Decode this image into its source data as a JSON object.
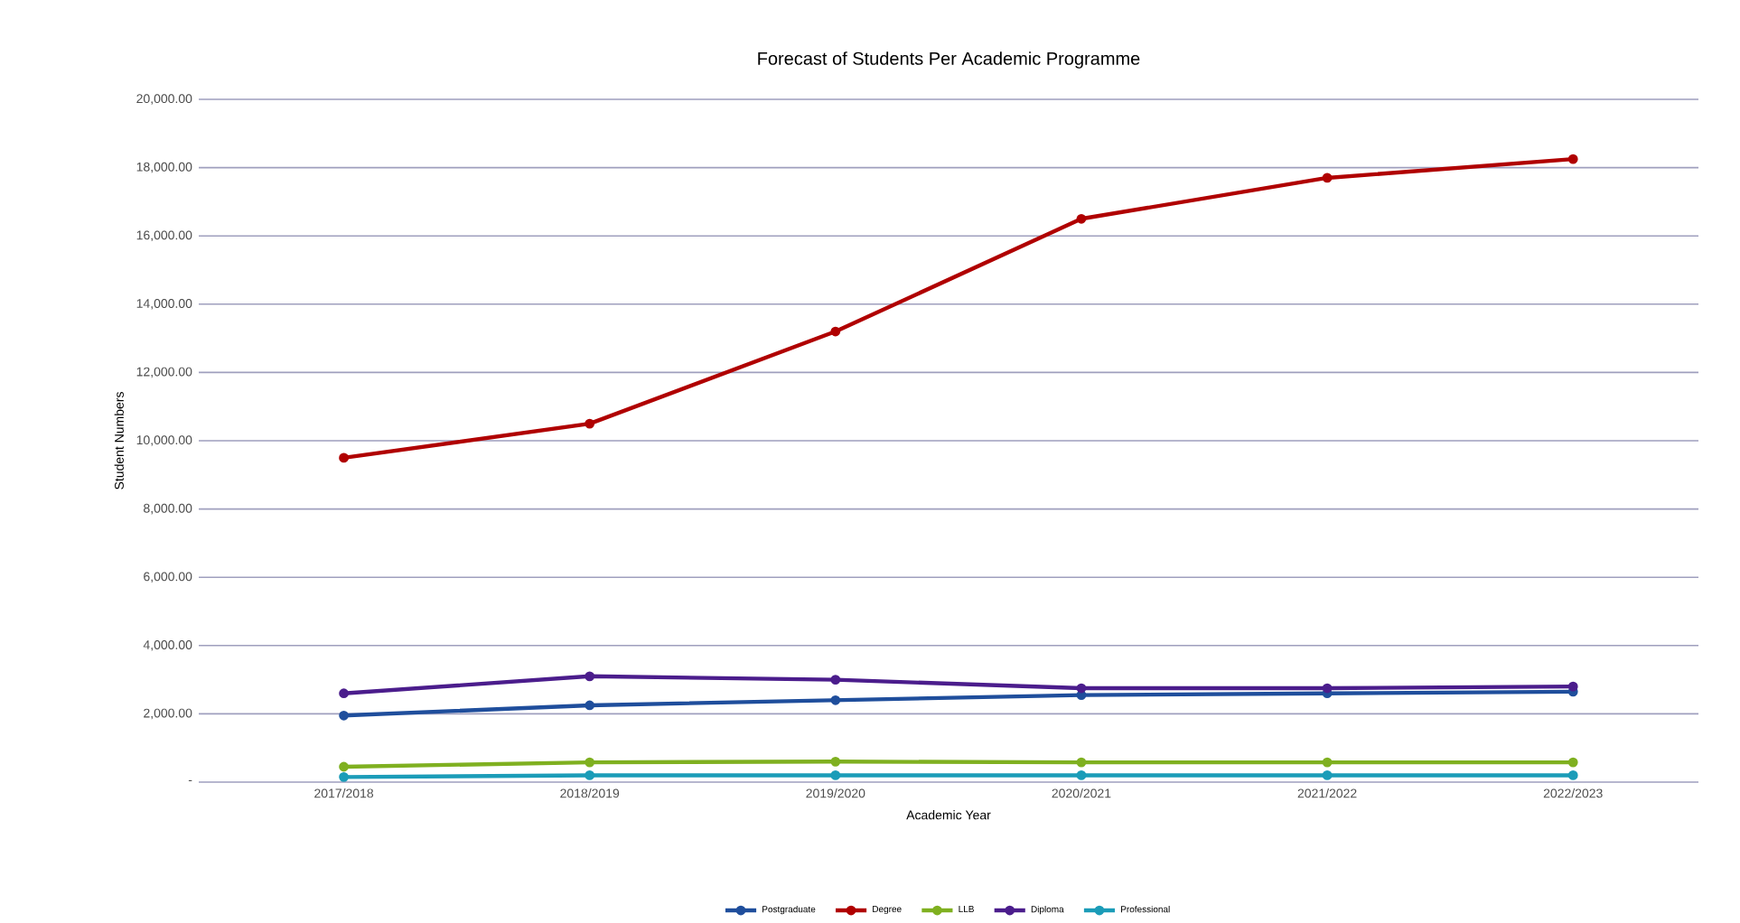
{
  "chart_data": {
    "type": "line",
    "title": "Forecast of Students Per Academic Programme",
    "xlabel": "Academic Year",
    "ylabel": "Student Numbers",
    "categories": [
      "2017/2018",
      "2018/2019",
      "2019/2020",
      "2020/2021",
      "2021/2022",
      "2022/2023"
    ],
    "series": [
      {
        "name": "Postgraduate",
        "color": "#1f4e9c",
        "values": [
          1950,
          2250,
          2400,
          2550,
          2600,
          2650
        ]
      },
      {
        "name": "Degree",
        "color": "#b00000",
        "values": [
          9500,
          10500,
          13200,
          16500,
          17700,
          18250
        ]
      },
      {
        "name": "LLB",
        "color": "#7fb020",
        "values": [
          450,
          580,
          600,
          580,
          580,
          580
        ]
      },
      {
        "name": "Diploma",
        "color": "#4b1d8c",
        "values": [
          2600,
          3100,
          3000,
          2750,
          2750,
          2800
        ]
      },
      {
        "name": "Professional",
        "color": "#1b9cb8",
        "values": [
          150,
          200,
          200,
          200,
          200,
          200
        ]
      }
    ],
    "ylim": [
      0,
      20000
    ],
    "yticks": [
      {
        "value": 0,
        "label": "-"
      },
      {
        "value": 2000,
        "label": "2,000.00"
      },
      {
        "value": 4000,
        "label": "4,000.00"
      },
      {
        "value": 6000,
        "label": "6,000.00"
      },
      {
        "value": 8000,
        "label": "8,000.00"
      },
      {
        "value": 10000,
        "label": "10,000.00"
      },
      {
        "value": 12000,
        "label": "12,000.00"
      },
      {
        "value": 14000,
        "label": "14,000.00"
      },
      {
        "value": 16000,
        "label": "16,000.00"
      },
      {
        "value": 18000,
        "label": "18,000.00"
      },
      {
        "value": 20000,
        "label": "20,000.00"
      }
    ],
    "grid": "y",
    "legend": "bottom",
    "marker": "circle",
    "line_style": "solid"
  }
}
